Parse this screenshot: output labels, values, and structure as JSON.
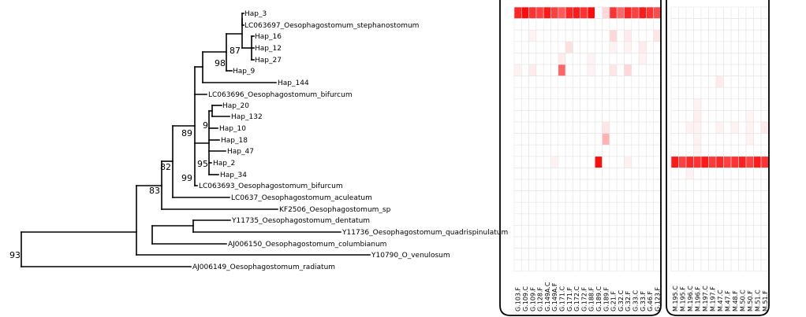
{
  "tree": {
    "tips": [
      "Hap_3",
      "LC063697_Oesophagostomum_stephanostomum",
      "Hap_16",
      "Hap_12",
      "Hap_27",
      "Hap_9",
      "Hap_144",
      "LC063696_Oesophagostomum_bifurcum",
      "Hap_20",
      "Hap_132",
      "Hap_10",
      "Hap_18",
      "Hap_47",
      "Hap_2",
      "Hap_34",
      "LC063693_Oesophagostomum_bifurcum",
      "LC0637_Oesophagostomum_aculeatum",
      "KF2506_Oesophagostomum_sp",
      "Y11735_Oesophagostomum_dentatum",
      "Y11736_Oesophagostomum_quadrispinulatum",
      "AJ006150_Oesophagostomum_columbianum",
      "Y10790_O_venulosum",
      "AJ006149_Oesophagostomum_radiatum"
    ],
    "bootstrap": [
      "87",
      "98",
      "9",
      "89",
      "95",
      "99",
      "82",
      "83",
      "93"
    ]
  },
  "heatmap": {
    "panels": [
      {
        "columns": [
          "G.103.F",
          "G.109.C",
          "G.109.F",
          "G.128.F",
          "G.149A.C",
          "G.149A.F",
          "G.171.C",
          "G.171.F",
          "G.172.C",
          "G.172.F",
          "G.188.F",
          "G.189.C",
          "G.189.F",
          "G.21.F",
          "G.32.C",
          "G.32.F",
          "G.33.C",
          "G.33.F",
          "G.46.F",
          "G.123.F"
        ]
      },
      {
        "columns": [
          "M.195.C",
          "M.195.F",
          "M.196.C",
          "M.196.F",
          "M.197.C",
          "M.197.F",
          "M.47.C",
          "M.47.F",
          "M.48.F",
          "M.50.C",
          "M.50.F",
          "M.51.C",
          "M.51.F"
        ]
      }
    ]
  },
  "colors": {
    "low": "#ffffff",
    "high": "#f70000",
    "grid": "#e4e4e4"
  }
}
